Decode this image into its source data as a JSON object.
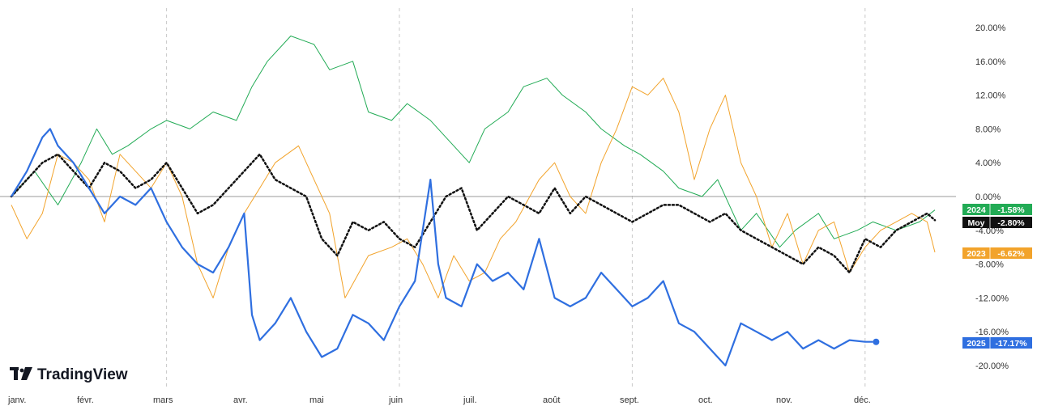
{
  "logo": {
    "text": "TradingView",
    "icon": "tradingview-logo-icon"
  },
  "chart_data": {
    "type": "line",
    "title": "",
    "xlabel": "",
    "ylabel": "",
    "ylim": [
      -21,
      22
    ],
    "x_ticks": [
      "janv.",
      "févr.",
      "mars",
      "avr.",
      "mai",
      "juin",
      "juil.",
      "août",
      "sept.",
      "oct.",
      "nov.",
      "déc."
    ],
    "y_ticks": [
      "20.00%",
      "16.00%",
      "12.00%",
      "8.00%",
      "4.00%",
      "0.00%",
      "-4.00%",
      "-8.00%",
      "-12.00%",
      "-16.00%",
      "-20.00%"
    ],
    "y_tick_values": [
      20,
      16,
      12,
      8,
      4,
      0,
      -4,
      -8,
      -12,
      -16,
      -20
    ],
    "zero_line": true,
    "vertical_grid_months": [
      "mars",
      "juin",
      "sept.",
      "déc."
    ],
    "series": [
      {
        "name": "2024",
        "color": "#22ab55",
        "style": "solid",
        "width": 1,
        "last_value": "-1.58%",
        "tag_label": "2024",
        "x": [
          0,
          0.3,
          0.6,
          0.9,
          1.1,
          1.3,
          1.5,
          1.8,
          2.0,
          2.3,
          2.6,
          2.9,
          3.1,
          3.3,
          3.6,
          3.9,
          4.1,
          4.4,
          4.6,
          4.9,
          5.1,
          5.4,
          5.6,
          5.9,
          6.1,
          6.4,
          6.6,
          6.9,
          7.1,
          7.4,
          7.6,
          7.9,
          8.1,
          8.4,
          8.6,
          8.9,
          9.1,
          9.4,
          9.6,
          9.9,
          10.1,
          10.4,
          10.6,
          10.9,
          11.1,
          11.4,
          11.7,
          11.9
        ],
        "y": [
          0,
          3,
          -1,
          4,
          8,
          5,
          6,
          8,
          9,
          8,
          10,
          9,
          13,
          16,
          19,
          18,
          15,
          16,
          10,
          9,
          11,
          9,
          7,
          4,
          8,
          10,
          13,
          14,
          12,
          10,
          8,
          6,
          5,
          3,
          1,
          0,
          2,
          -4,
          -2,
          -6,
          -4,
          -2,
          -5,
          -4,
          -3,
          -4,
          -3,
          -1.6
        ]
      },
      {
        "name": "2023",
        "color": "#f2a32b",
        "style": "solid",
        "width": 1,
        "last_value": "-6.62%",
        "tag_label": "2023",
        "x": [
          0,
          0.2,
          0.4,
          0.6,
          0.8,
          1.0,
          1.2,
          1.4,
          1.6,
          1.8,
          2.0,
          2.2,
          2.4,
          2.6,
          2.8,
          3.0,
          3.2,
          3.4,
          3.7,
          3.9,
          4.1,
          4.3,
          4.6,
          4.9,
          5.1,
          5.3,
          5.5,
          5.7,
          5.9,
          6.1,
          6.3,
          6.5,
          6.8,
          7.0,
          7.2,
          7.4,
          7.6,
          7.8,
          8.0,
          8.2,
          8.4,
          8.6,
          8.8,
          9.0,
          9.2,
          9.4,
          9.6,
          9.8,
          10.0,
          10.2,
          10.4,
          10.6,
          10.8,
          11.0,
          11.2,
          11.4,
          11.6,
          11.8,
          11.9
        ],
        "y": [
          -1,
          -5,
          -2,
          5,
          4,
          2,
          -3,
          5,
          3,
          1,
          4,
          0,
          -8,
          -12,
          -6,
          -2,
          1,
          4,
          6,
          2,
          -2,
          -12,
          -7,
          -6,
          -5,
          -8,
          -12,
          -7,
          -10,
          -9,
          -5,
          -3,
          2,
          4,
          0,
          -2,
          4,
          8,
          13,
          12,
          14,
          10,
          2,
          8,
          12,
          4,
          0,
          -6,
          -2,
          -8,
          -4,
          -3,
          -9,
          -6,
          -4,
          -3,
          -2,
          -3,
          -6.6
        ]
      },
      {
        "name": "Moy",
        "color": "#111111",
        "style": "dotted",
        "width": 2.5,
        "last_value": "-2.80%",
        "tag_label": "Moy",
        "x": [
          0,
          0.2,
          0.4,
          0.6,
          0.8,
          1.0,
          1.2,
          1.4,
          1.6,
          1.8,
          2.0,
          2.2,
          2.4,
          2.6,
          2.8,
          3.0,
          3.2,
          3.4,
          3.6,
          3.8,
          4.0,
          4.2,
          4.4,
          4.6,
          4.8,
          5.0,
          5.2,
          5.4,
          5.6,
          5.8,
          6.0,
          6.2,
          6.4,
          6.6,
          6.8,
          7.0,
          7.2,
          7.4,
          7.6,
          7.8,
          8.0,
          8.2,
          8.4,
          8.6,
          8.8,
          9.0,
          9.2,
          9.4,
          9.6,
          9.8,
          10.0,
          10.2,
          10.4,
          10.6,
          10.8,
          11.0,
          11.2,
          11.4,
          11.6,
          11.8,
          11.9
        ],
        "y": [
          0,
          2,
          4,
          5,
          3,
          1,
          4,
          3,
          1,
          2,
          4,
          1,
          -2,
          -1,
          1,
          3,
          5,
          2,
          1,
          0,
          -5,
          -7,
          -3,
          -4,
          -3,
          -5,
          -6,
          -3,
          0,
          1,
          -4,
          -2,
          0,
          -1,
          -2,
          1,
          -2,
          0,
          -1,
          -2,
          -3,
          -2,
          -1,
          -1,
          -2,
          -3,
          -2,
          -4,
          -5,
          -6,
          -7,
          -8,
          -6,
          -7,
          -9,
          -5,
          -6,
          -4,
          -3,
          -2,
          -2.8
        ]
      },
      {
        "name": "2025",
        "color": "#2f6fe0",
        "style": "solid",
        "width": 2.2,
        "last_value": "-17.17%",
        "tag_label": "2025",
        "x": [
          0,
          0.2,
          0.4,
          0.5,
          0.6,
          0.8,
          1.0,
          1.2,
          1.4,
          1.6,
          1.8,
          2.0,
          2.2,
          2.4,
          2.6,
          2.8,
          3.0,
          3.1,
          3.2,
          3.4,
          3.6,
          3.8,
          4.0,
          4.2,
          4.4,
          4.6,
          4.8,
          5.0,
          5.2,
          5.4,
          5.5,
          5.6,
          5.8,
          6.0,
          6.2,
          6.4,
          6.6,
          6.8,
          7.0,
          7.2,
          7.4,
          7.6,
          7.8,
          8.0,
          8.2,
          8.4,
          8.6,
          8.8,
          9.0,
          9.2,
          9.4,
          9.6,
          9.8,
          10.0,
          10.2,
          10.4,
          10.6,
          10.8,
          11.0,
          11.1
        ],
        "y": [
          0,
          3,
          7,
          8,
          6,
          4,
          1,
          -2,
          0,
          -1,
          1,
          -3,
          -6,
          -8,
          -9,
          -6,
          -2,
          -14,
          -17,
          -15,
          -12,
          -16,
          -19,
          -18,
          -14,
          -15,
          -17,
          -13,
          -10,
          2,
          -8,
          -12,
          -13,
          -8,
          -10,
          -9,
          -11,
          -5,
          -12,
          -13,
          -12,
          -9,
          -11,
          -13,
          -12,
          -10,
          -15,
          -16,
          -18,
          -20,
          -15,
          -16,
          -17,
          -16,
          -18,
          -17,
          -18,
          -17,
          -17.2,
          -17.2
        ]
      }
    ]
  }
}
